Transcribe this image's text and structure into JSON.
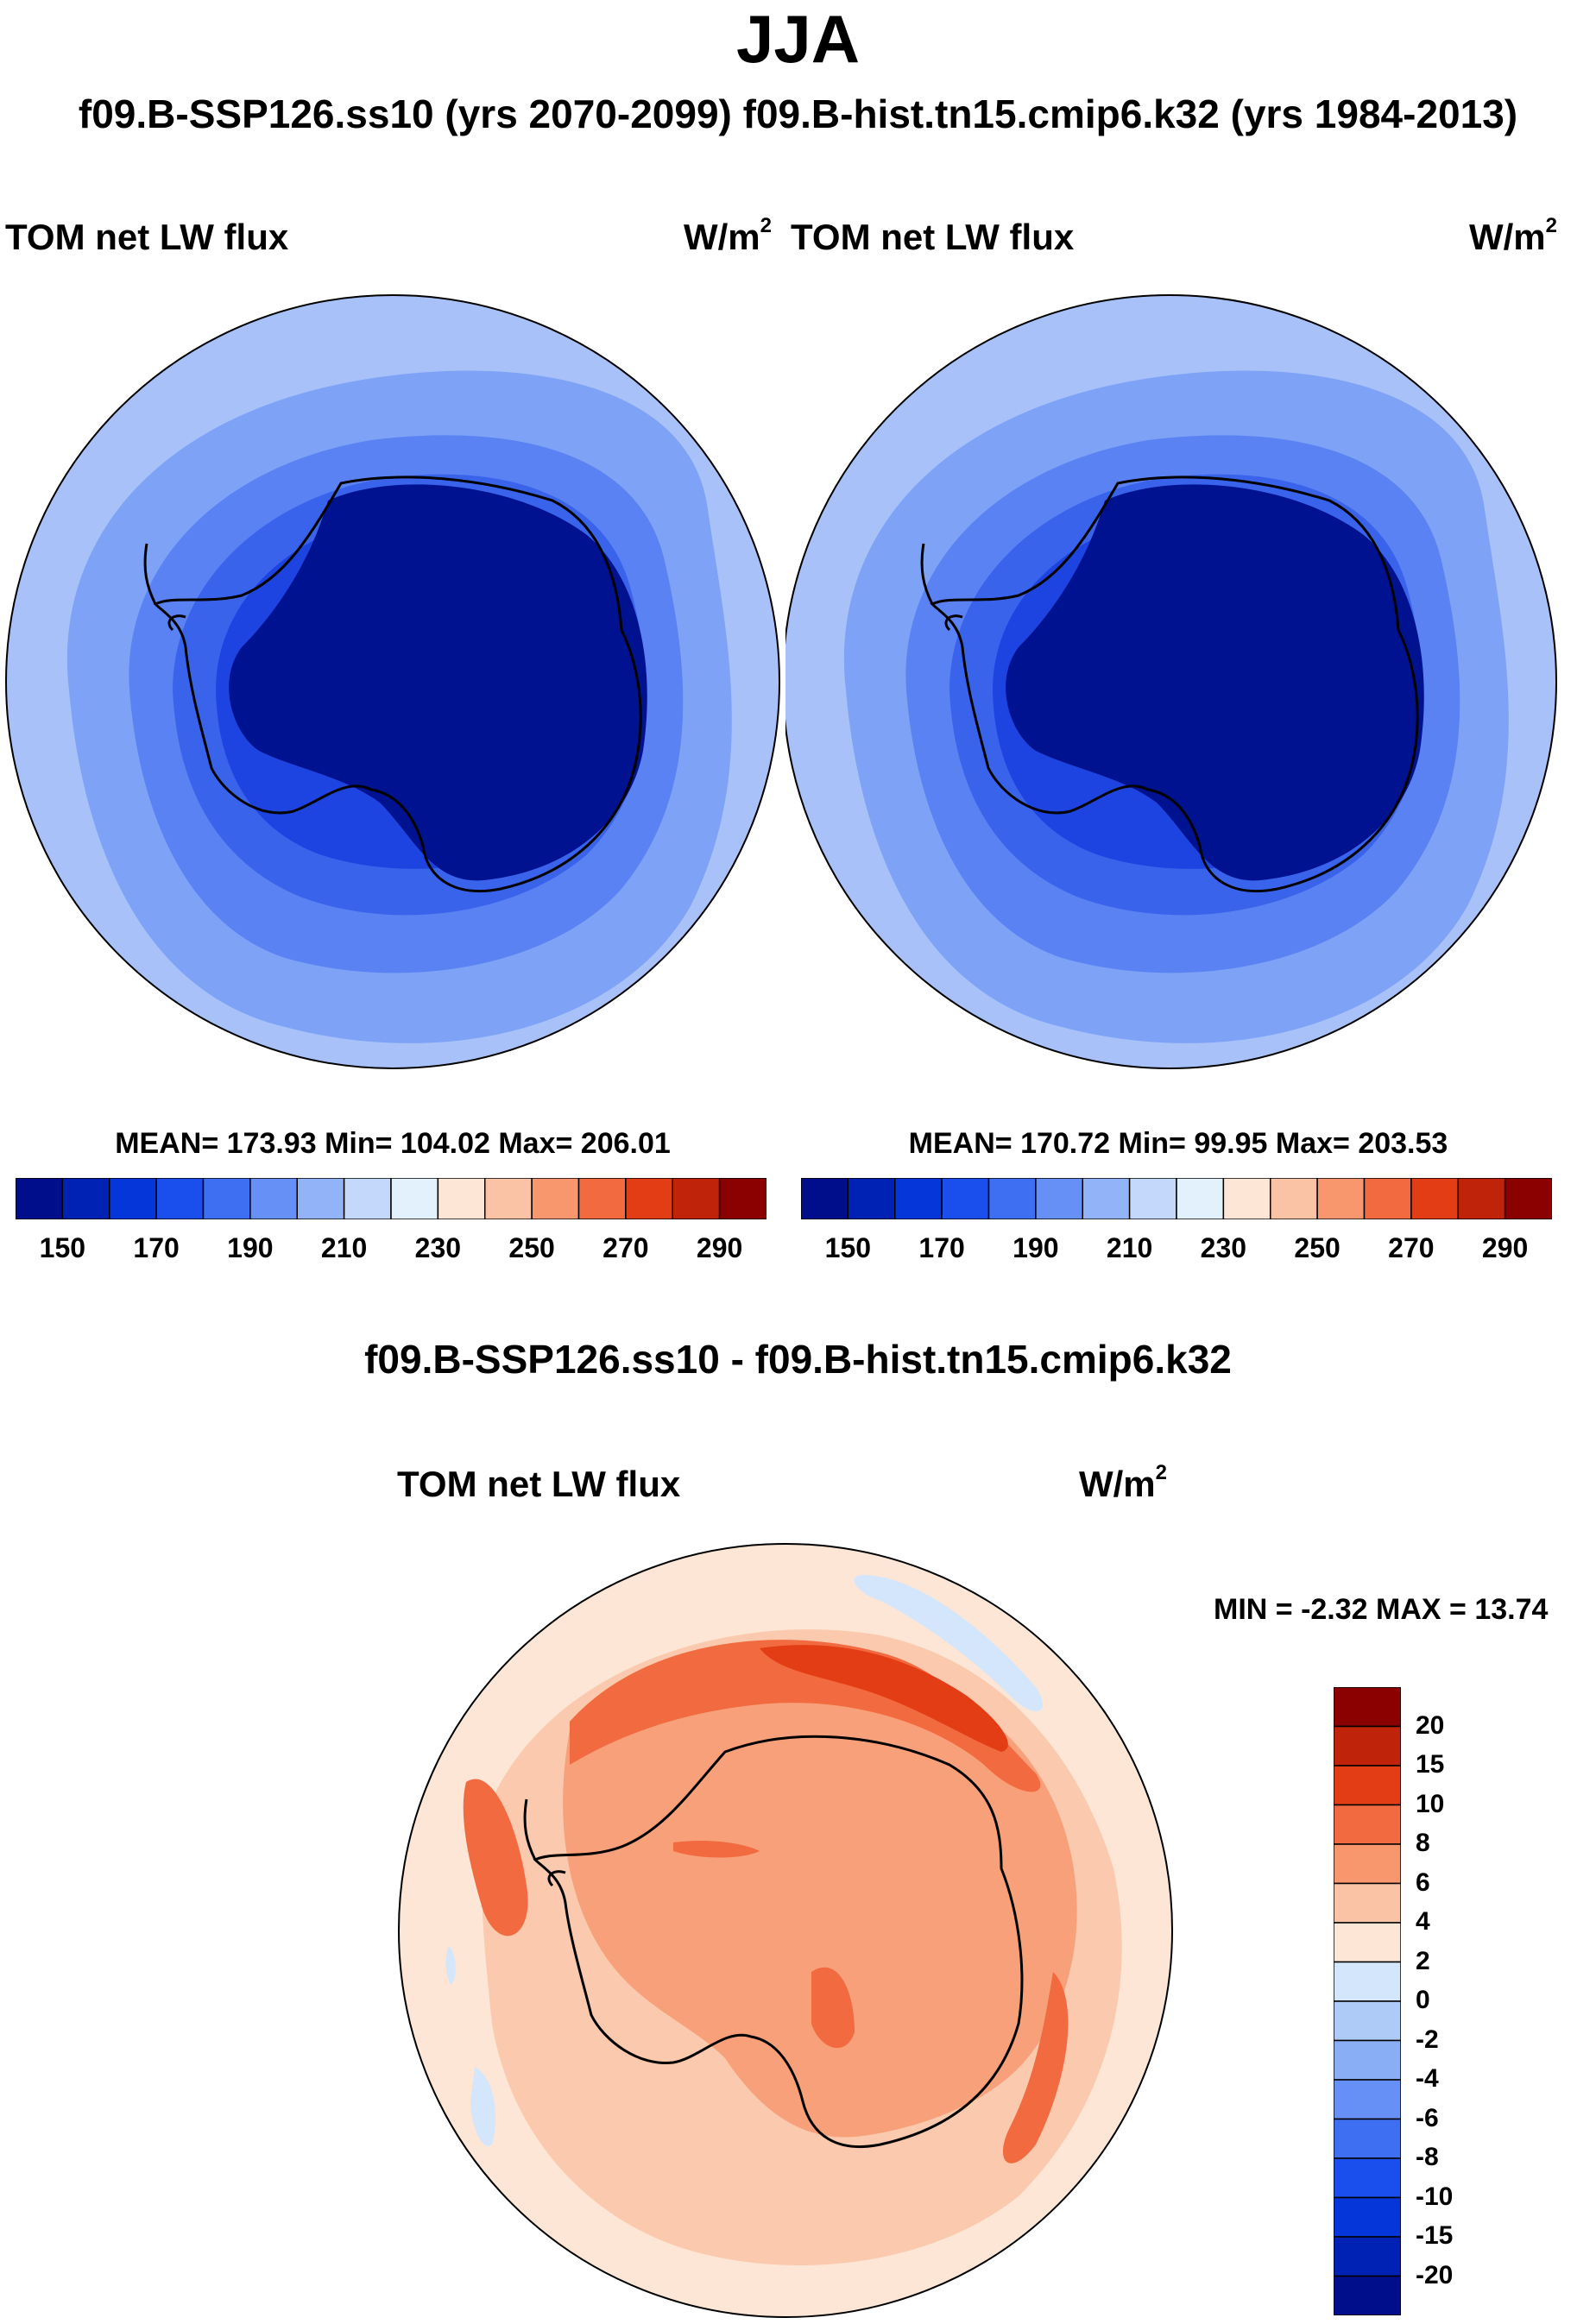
{
  "title": "JJA",
  "subtitle": "f09.B-SSP126.ss10 (yrs 2070-2099)  f09.B-hist.tn15.cmip6.k32 (yrs 1984-2013)",
  "panels": [
    {
      "variable": "TOM net LW flux",
      "units_base": "W/m",
      "units_exp": "2",
      "stats": "MEAN= 173.93  Min= 104.02  Max= 206.01"
    },
    {
      "variable": "TOM net LW flux",
      "units_base": "W/m",
      "units_exp": "2",
      "stats": "MEAN= 170.72  Min=  99.95  Max= 203.53"
    }
  ],
  "abs_colorbar": {
    "colors": [
      "#000e8c",
      "#0022b4",
      "#0536d9",
      "#1a4fee",
      "#3e6ef2",
      "#6690f6",
      "#93b3f8",
      "#c3d8fb",
      "#e2f1fc",
      "#fde6d5",
      "#fbc3a6",
      "#f8976e",
      "#f26a3f",
      "#e33d16",
      "#bf230a",
      "#8b0000"
    ],
    "labels": [
      "150",
      "170",
      "190",
      "210",
      "230",
      "250",
      "270",
      "290"
    ]
  },
  "diff": {
    "title": "f09.B-SSP126.ss10 - f09.B-hist.tn15.cmip6.k32",
    "variable": "TOM net LW flux",
    "units_base": "W/m",
    "units_exp": "2",
    "stats": "MIN =  -2.32 MAX =  13.74"
  },
  "diff_colorbar": {
    "colors": [
      "#8b0000",
      "#bf230a",
      "#e33d16",
      "#f26a3f",
      "#f8976e",
      "#fbc3a6",
      "#fde6d5",
      "#d4e6fb",
      "#aecbf8",
      "#8aaef5",
      "#6690f6",
      "#3e6ef2",
      "#1a4fee",
      "#0536d9",
      "#0022b4",
      "#000e8c"
    ],
    "labels": [
      "20",
      "15",
      "10",
      "8",
      "6",
      "4",
      "2",
      "0",
      "-2",
      "-4",
      "-6",
      "-8",
      "-10",
      "-15",
      "-20"
    ]
  },
  "map_colors": {
    "abs_outer": "#a8c1f9",
    "abs_ring1": "#7ea3f6",
    "abs_ring2": "#5a82f2",
    "abs_ring3": "#3a63ec",
    "abs_ring4": "#1d44e0",
    "abs_core": "#00128f",
    "diff_bg": "#fde6d5",
    "diff_light": "#fbc9ad",
    "diff_mid": "#f8a07a",
    "diff_strong": "#f26a3f",
    "diff_max": "#e33d16",
    "diff_neg": "#d4e6fb"
  }
}
